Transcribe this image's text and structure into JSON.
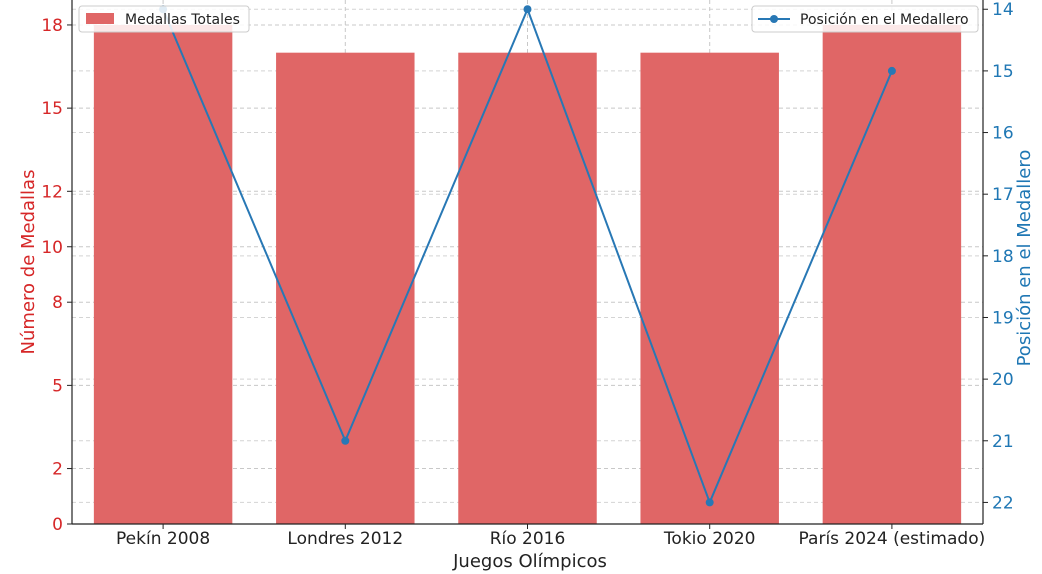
{
  "chart_data": {
    "type": "bar",
    "categories": [
      "Pekín 2008",
      "Londres 2012",
      "Río 2016",
      "Tokio 2020",
      "París 2024 (estimado)"
    ],
    "series": [
      {
        "name": "Medallas Totales",
        "type": "bar",
        "axis": "left",
        "values": [
          18,
          17,
          17,
          17,
          18
        ]
      },
      {
        "name": "Posición en el Medallero",
        "type": "line",
        "axis": "right",
        "values": [
          14,
          21,
          14,
          22,
          15
        ]
      }
    ],
    "xlabel": "Juegos Olímpicos",
    "ylabel": "Número de Medallas",
    "y2label": "Posición en el Medallero",
    "ylim": [
      0,
      18.9
    ],
    "y2lim": [
      13.85,
      22.35
    ],
    "y2_inverted": true,
    "yticks": [
      0,
      2,
      5,
      8,
      10,
      12,
      15,
      18
    ],
    "y2ticks": [
      14,
      15,
      16,
      17,
      18,
      19,
      20,
      21,
      22
    ],
    "grid": true,
    "legend_bar_position": "top-left",
    "legend_line_position": "top-right",
    "colors": {
      "bar": "#e06666",
      "line": "#2878b5",
      "left_axis": "#d62728",
      "right_axis": "#1f77b4"
    }
  }
}
